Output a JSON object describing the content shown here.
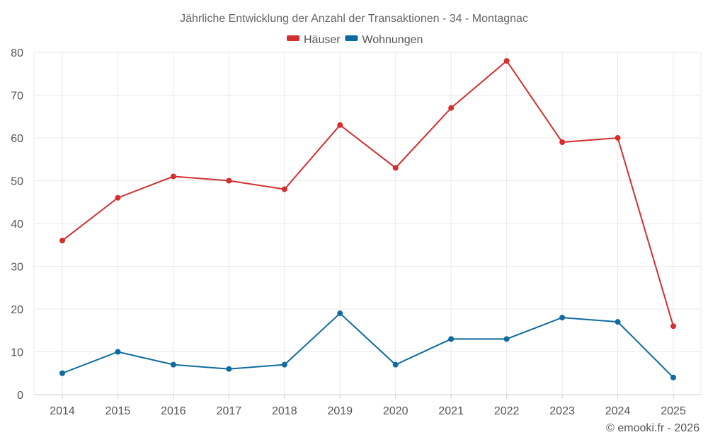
{
  "chart_data": {
    "type": "line",
    "title": "Jährliche Entwicklung der Anzahl der Transaktionen - 34 - Montagnac",
    "categories": [
      "2014",
      "2015",
      "2016",
      "2017",
      "2018",
      "2019",
      "2020",
      "2021",
      "2022",
      "2023",
      "2024",
      "2025"
    ],
    "series": [
      {
        "name": "Häuser",
        "color": "#d32f2f",
        "values": [
          36,
          46,
          51,
          50,
          48,
          63,
          53,
          67,
          78,
          59,
          60,
          16
        ]
      },
      {
        "name": "Wohnungen",
        "color": "#0f6aa0",
        "values": [
          5,
          10,
          7,
          6,
          7,
          19,
          7,
          13,
          13,
          18,
          17,
          4
        ]
      }
    ],
    "ylim": [
      0,
      80
    ],
    "yticks": [
      0,
      10,
      20,
      30,
      40,
      50,
      60,
      70,
      80
    ],
    "xlabel": "",
    "ylabel": "",
    "grid": true,
    "legend": "top-center"
  },
  "footer": {
    "copyright": "© emooki.fr - 2026"
  }
}
